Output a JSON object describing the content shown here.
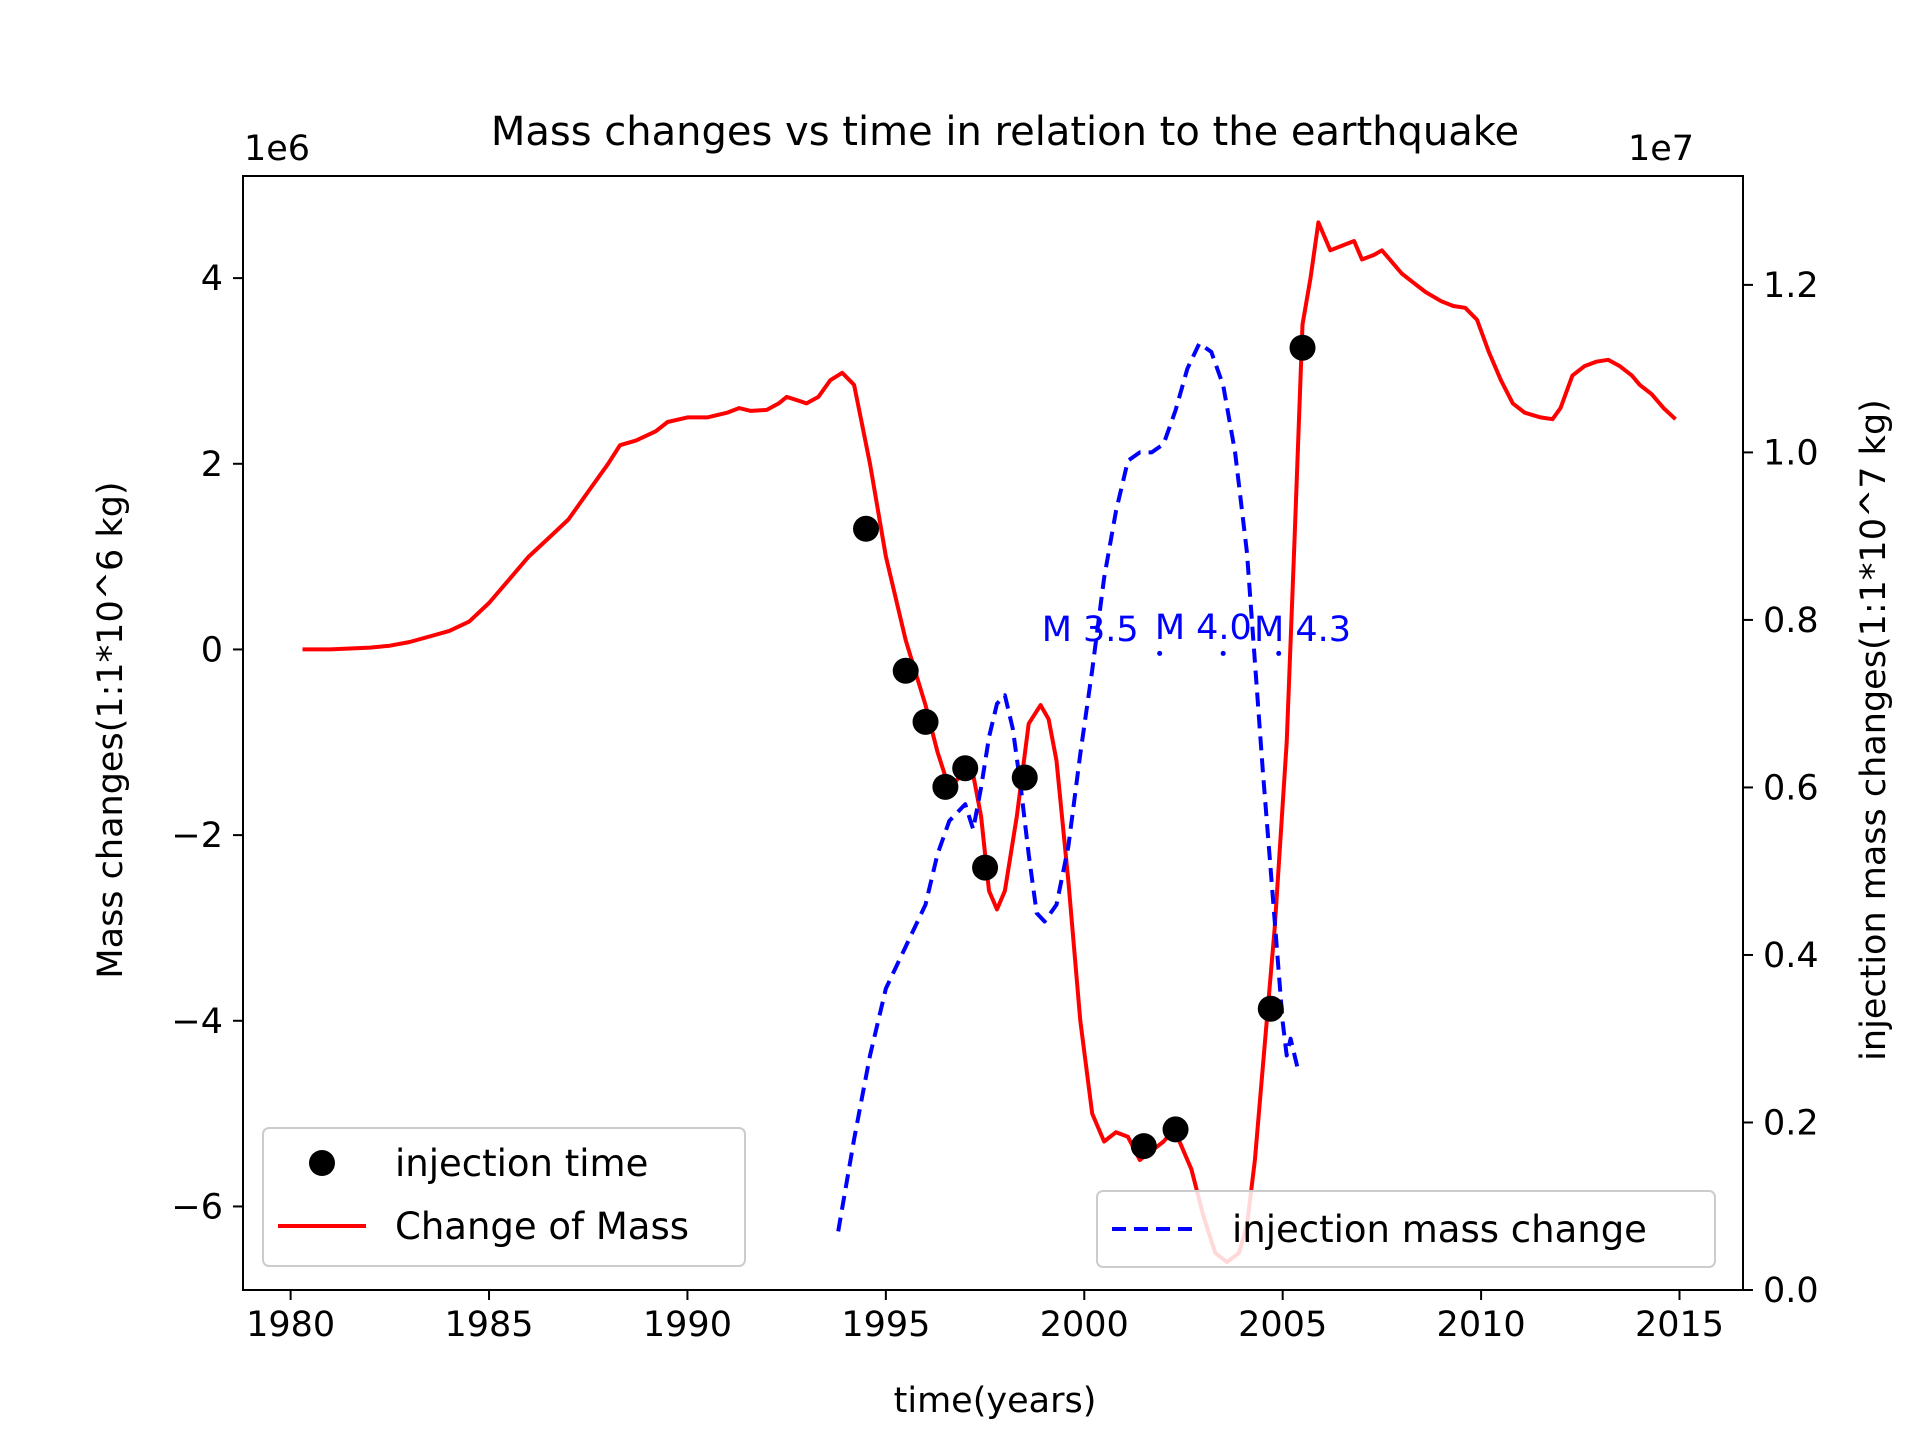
{
  "chart_data": {
    "type": "line",
    "title": "Mass changes vs time in relation to the earthquake",
    "xlabel": "time(years)",
    "ylabel_left": "Mass changes(1:1*10^6 kg)",
    "ylabel_right": "injection mass changes(1:1*10^7 kg)",
    "left_offset_text": "1e6",
    "right_offset_text": "1e7",
    "xlim": [
      1978.8,
      2016.6
    ],
    "ylim_left": [
      -6.9,
      5.1
    ],
    "ylim_right": [
      0,
      1.33
    ],
    "x_ticks": [
      1980,
      1985,
      1990,
      1995,
      2000,
      2005,
      2010,
      2015
    ],
    "x_tick_labels": [
      "1980",
      "1985",
      "1990",
      "1995",
      "2000",
      "2005",
      "2010",
      "2015"
    ],
    "y_left_ticks": [
      -6,
      -4,
      -2,
      0,
      2,
      4
    ],
    "y_left_tick_labels": [
      "−6",
      "−4",
      "−2",
      "0",
      "2",
      "4"
    ],
    "y_right_ticks": [
      0.0,
      0.2,
      0.4,
      0.6,
      0.8,
      1.0,
      1.2
    ],
    "y_right_tick_labels": [
      "0.0",
      "0.2",
      "0.4",
      "0.6",
      "0.8",
      "1.0",
      "1.2"
    ],
    "grid": false,
    "colors": {
      "mass": "#ff0000",
      "injection": "#0000ff",
      "points": "#000000",
      "annotation": "#0000ff"
    },
    "series": [
      {
        "name": "Change of Mass",
        "axis": "left",
        "style": "solid",
        "x": [
          1980.3,
          1981,
          1982,
          1982.5,
          1983,
          1983.5,
          1984,
          1984.5,
          1985,
          1985.5,
          1986,
          1986.5,
          1987,
          1987.5,
          1988,
          1988.3,
          1988.7,
          1989.2,
          1989.5,
          1990,
          1990.5,
          1991,
          1991.3,
          1991.6,
          1992,
          1992.3,
          1992.5,
          1992.8,
          1993,
          1993.3,
          1993.6,
          1993.9,
          1994.2,
          1994.6,
          1995,
          1995.5,
          1996,
          1996.3,
          1996.6,
          1996.8,
          1997,
          1997.2,
          1997.4,
          1997.6,
          1997.8,
          1998,
          1998.3,
          1998.6,
          1998.9,
          1999.1,
          1999.3,
          1999.6,
          1999.9,
          2000.2,
          2000.5,
          2000.8,
          2001.1,
          2001.4,
          2001.7,
          2002,
          2002.2,
          2002.4,
          2002.7,
          2003,
          2003.3,
          2003.6,
          2003.9,
          2004.1,
          2004.3,
          2004.5,
          2004.8,
          2005.1,
          2005.3,
          2005.5,
          2005.7,
          2005.9,
          2006.2,
          2006.5,
          2006.8,
          2007,
          2007.3,
          2007.5,
          2007.8,
          2008,
          2008.3,
          2008.6,
          2009,
          2009.3,
          2009.6,
          2009.9,
          2010.2,
          2010.5,
          2010.8,
          2011.1,
          2011.5,
          2011.8,
          2012,
          2012.3,
          2012.6,
          2012.9,
          2013.2,
          2013.5,
          2013.8,
          2014,
          2014.3,
          2014.6,
          2014.9
        ],
        "y": [
          0.0,
          0.0,
          0.02,
          0.04,
          0.08,
          0.14,
          0.2,
          0.3,
          0.5,
          0.75,
          1.0,
          1.2,
          1.4,
          1.7,
          2.0,
          2.2,
          2.25,
          2.35,
          2.45,
          2.5,
          2.5,
          2.55,
          2.6,
          2.57,
          2.58,
          2.65,
          2.72,
          2.68,
          2.65,
          2.72,
          2.9,
          2.98,
          2.85,
          2.0,
          1.0,
          0.1,
          -0.6,
          -1.1,
          -1.5,
          -1.4,
          -1.3,
          -1.35,
          -1.8,
          -2.6,
          -2.8,
          -2.6,
          -1.8,
          -0.8,
          -0.6,
          -0.75,
          -1.2,
          -2.5,
          -4.0,
          -5.0,
          -5.3,
          -5.2,
          -5.25,
          -5.5,
          -5.4,
          -5.3,
          -5.2,
          -5.3,
          -5.6,
          -6.1,
          -6.5,
          -6.6,
          -6.5,
          -6.2,
          -5.5,
          -4.5,
          -3.0,
          -1.0,
          1.2,
          3.5,
          4.0,
          4.6,
          4.3,
          4.35,
          4.4,
          4.2,
          4.25,
          4.3,
          4.15,
          4.05,
          3.95,
          3.85,
          3.75,
          3.7,
          3.68,
          3.55,
          3.2,
          2.9,
          2.65,
          2.55,
          2.5,
          2.48,
          2.6,
          2.95,
          3.05,
          3.1,
          3.12,
          3.05,
          2.95,
          2.85,
          2.75,
          2.6,
          2.48
        ]
      },
      {
        "name": "injection mass change",
        "axis": "right",
        "style": "dashed",
        "x": [
          1993.8,
          1994.2,
          1994.6,
          1995,
          1995.5,
          1996,
          1996.3,
          1996.6,
          1996.8,
          1997,
          1997.2,
          1997.4,
          1997.6,
          1997.8,
          1998,
          1998.2,
          1998.4,
          1998.6,
          1998.8,
          1999,
          1999.3,
          1999.6,
          1999.9,
          2000.2,
          2000.5,
          2000.8,
          2001.1,
          2001.4,
          2001.7,
          2002,
          2002.3,
          2002.6,
          2002.9,
          2003.2,
          2003.5,
          2003.8,
          2004.1,
          2004.3,
          2004.5,
          2004.7,
          2004.9,
          2005,
          2005.1,
          2005.2,
          2005.3,
          2005.4
        ],
        "y": [
          0.07,
          0.18,
          0.28,
          0.36,
          0.41,
          0.46,
          0.52,
          0.56,
          0.57,
          0.58,
          0.55,
          0.6,
          0.66,
          0.7,
          0.71,
          0.67,
          0.6,
          0.52,
          0.45,
          0.44,
          0.46,
          0.53,
          0.64,
          0.74,
          0.85,
          0.93,
          0.99,
          1.0,
          1.0,
          1.01,
          1.05,
          1.1,
          1.13,
          1.12,
          1.08,
          1.0,
          0.88,
          0.75,
          0.62,
          0.5,
          0.38,
          0.32,
          0.28,
          0.3,
          0.28,
          0.26
        ]
      },
      {
        "name": "injection time",
        "axis": "left",
        "style": "markers",
        "x": [
          1994.5,
          1995.5,
          1996.0,
          1996.5,
          1997.0,
          1997.5,
          1998.5,
          2001.5,
          2002.3,
          2004.7,
          2005.5
        ],
        "y": [
          1.3,
          -0.23,
          -0.78,
          -1.48,
          -1.28,
          -2.35,
          -1.38,
          -5.35,
          -5.17,
          -3.87,
          3.25
        ]
      }
    ],
    "annotations": [
      {
        "text": "M 3.5",
        "x": 2000.15,
        "y": 7.75,
        "axis": "right"
      },
      {
        "text": "M 4.0",
        "x": 2003.0,
        "y": 7.77,
        "axis": "right"
      },
      {
        "text": "M 4.3",
        "x": 2005.5,
        "y": 7.75,
        "axis": "right"
      }
    ],
    "legends": [
      {
        "placement": "lower-left",
        "entries": [
          "injection time",
          "Change of Mass"
        ]
      },
      {
        "placement": "lower-right",
        "entries": [
          "injection mass change"
        ]
      }
    ]
  }
}
